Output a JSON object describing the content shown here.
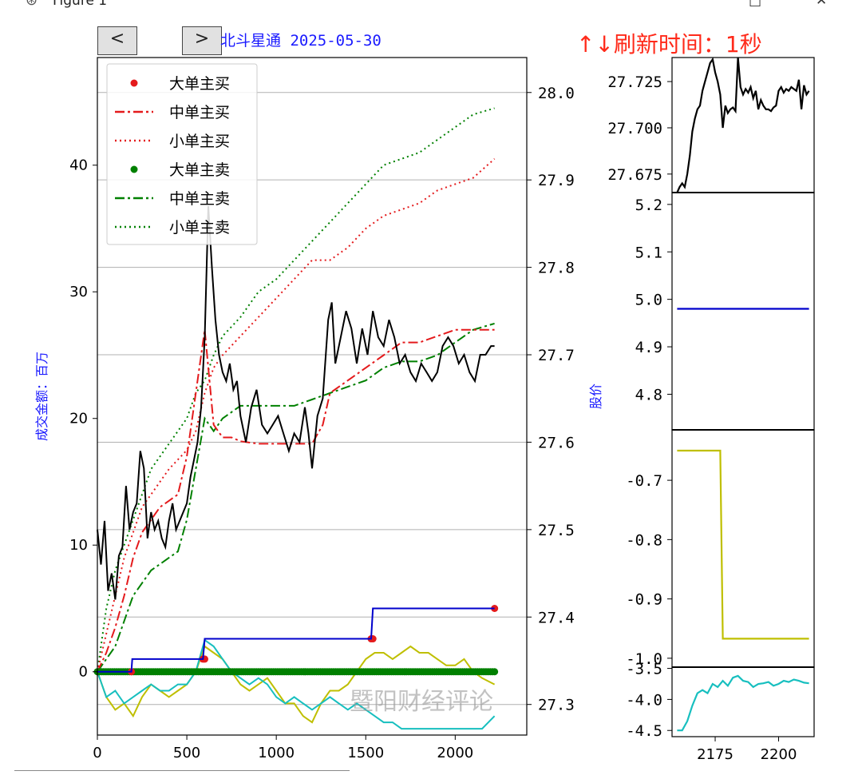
{
  "window": {
    "title": "Figure 1",
    "icon": "matplotlib-logo-icon"
  },
  "nav": {
    "prev_label": "<",
    "next_label": ">"
  },
  "subtitle": "北斗星通 2025-05-30",
  "refresh_text": "↑↓刷新时间：1秒",
  "watermark": "暨阳财经评论",
  "colors": {
    "price": "#000000",
    "big": "#e41a1c",
    "mid": "#e41a1c",
    "small": "#e41a1c",
    "sell": "#008000",
    "blue": "#0000cc",
    "olive": "#bfbf00",
    "cyan": "#17bfbf",
    "title_blue": "#1a1aff",
    "refresh_red": "#ff2a1a"
  },
  "chart_data": [
    {
      "type": "line",
      "ylabel": "成交金额：百万",
      "y2label": "股价",
      "xlim": [
        0,
        2400
      ],
      "ylim": [
        -5,
        48.5
      ],
      "y2lim": [
        27.265,
        28.04
      ],
      "xticks": [
        0,
        500,
        1000,
        1500,
        2000
      ],
      "yticks": [
        0,
        10,
        20,
        30,
        40
      ],
      "y2ticks": [
        27.3,
        27.4,
        27.5,
        27.6,
        27.7,
        27.8,
        27.9,
        28.0
      ],
      "y2grid": true,
      "legend_position": "upper-left",
      "legend": [
        "大单主买",
        "中单主买",
        "小单主买",
        "大单主卖",
        "中单主卖",
        "小单主卖"
      ],
      "series": [
        {
          "name": "大单主买",
          "style": "dots",
          "x": [
            0,
            190,
            195,
            590,
            600,
            1530,
            1540,
            2220
          ],
          "values": [
            0,
            0,
            1.0,
            1.0,
            2.6,
            2.6,
            5.0,
            5.0
          ]
        },
        {
          "name": "中单主买",
          "style": "dashdot",
          "x": [
            0,
            50,
            100,
            150,
            200,
            250,
            300,
            350,
            400,
            450,
            500,
            550,
            600,
            650,
            700,
            750,
            800,
            900,
            1000,
            1100,
            1200,
            1260,
            1300,
            1400,
            1500,
            1600,
            1700,
            1800,
            1900,
            2000,
            2100,
            2220
          ],
          "values": [
            0,
            1.5,
            3.5,
            6,
            9,
            11,
            12,
            13,
            13.5,
            14,
            17,
            22,
            27,
            19.5,
            18.5,
            18.5,
            18.2,
            18,
            18,
            18,
            18,
            19.5,
            22,
            23,
            24,
            25,
            26,
            26,
            26.5,
            27,
            27,
            27
          ]
        },
        {
          "name": "小单主买",
          "style": "dotted",
          "x": [
            0,
            50,
            100,
            150,
            200,
            250,
            300,
            400,
            500,
            550,
            600,
            650,
            700,
            800,
            900,
            1000,
            1100,
            1200,
            1300,
            1400,
            1500,
            1600,
            1700,
            1800,
            1900,
            2000,
            2100,
            2220
          ],
          "values": [
            0,
            3,
            6,
            9,
            11,
            13,
            14,
            16,
            17.5,
            19,
            22,
            24,
            25,
            26.5,
            28,
            29.5,
            31,
            32.5,
            32.5,
            33.5,
            35,
            36,
            36.5,
            37,
            38,
            38.5,
            39,
            40.5
          ]
        },
        {
          "name": "大单主卖",
          "style": "dots",
          "x": [
            0,
            500,
            1000,
            1500,
            2000,
            2220
          ],
          "values": [
            0,
            0,
            0,
            0,
            0,
            0
          ]
        },
        {
          "name": "中单主卖",
          "style": "dashdot",
          "x": [
            0,
            50,
            100,
            150,
            200,
            250,
            300,
            350,
            400,
            450,
            500,
            550,
            600,
            650,
            700,
            800,
            900,
            1000,
            1100,
            1200,
            1300,
            1400,
            1500,
            1600,
            1700,
            1800,
            1900,
            2000,
            2100,
            2220
          ],
          "values": [
            0,
            1,
            2,
            4,
            6,
            7,
            8,
            8.5,
            9,
            9.5,
            12,
            16,
            20,
            19,
            20,
            21,
            21,
            21,
            21,
            21.5,
            22,
            22.5,
            23,
            24,
            24.5,
            24.5,
            25,
            26,
            27,
            27.5
          ]
        },
        {
          "name": "小单主卖",
          "style": "dotted",
          "x": [
            0,
            50,
            100,
            150,
            200,
            250,
            300,
            400,
            500,
            550,
            600,
            650,
            700,
            800,
            900,
            1000,
            1100,
            1200,
            1300,
            1400,
            1500,
            1600,
            1700,
            1800,
            1900,
            2000,
            2100,
            2220
          ],
          "values": [
            0,
            5,
            8,
            10,
            12,
            14,
            16,
            18,
            20,
            22,
            23,
            25,
            26.5,
            28,
            30,
            31,
            32.5,
            34,
            35.5,
            37,
            38.5,
            40,
            40.5,
            41,
            42,
            43,
            44,
            44.5
          ]
        },
        {
          "name": "股价",
          "axis": "right",
          "style": "line",
          "x": [
            0,
            20,
            40,
            60,
            80,
            100,
            120,
            140,
            160,
            180,
            200,
            220,
            240,
            260,
            280,
            300,
            320,
            340,
            360,
            380,
            400,
            420,
            440,
            460,
            480,
            500,
            520,
            540,
            560,
            580,
            600,
            620,
            640,
            660,
            680,
            700,
            720,
            740,
            760,
            780,
            800,
            830,
            860,
            890,
            920,
            950,
            980,
            1010,
            1040,
            1070,
            1100,
            1130,
            1160,
            1180,
            1200,
            1230,
            1260,
            1290,
            1310,
            1330,
            1360,
            1390,
            1420,
            1450,
            1480,
            1510,
            1540,
            1570,
            1600,
            1630,
            1660,
            1690,
            1720,
            1750,
            1780,
            1810,
            1840,
            1870,
            1900,
            1930,
            1960,
            1990,
            2020,
            2050,
            2080,
            2110,
            2140,
            2170,
            2200,
            2220
          ],
          "values": [
            27.5,
            27.46,
            27.51,
            27.43,
            27.45,
            27.42,
            27.47,
            27.48,
            27.55,
            27.5,
            27.52,
            27.53,
            27.59,
            27.57,
            27.49,
            27.52,
            27.5,
            27.51,
            27.49,
            27.48,
            27.51,
            27.53,
            27.5,
            27.51,
            27.52,
            27.53,
            27.56,
            27.58,
            27.6,
            27.64,
            27.72,
            27.87,
            27.8,
            27.74,
            27.7,
            27.68,
            27.67,
            27.69,
            27.66,
            27.67,
            27.63,
            27.6,
            27.64,
            27.66,
            27.62,
            27.61,
            27.62,
            27.63,
            27.61,
            27.59,
            27.61,
            27.6,
            27.64,
            27.61,
            27.57,
            27.63,
            27.65,
            27.74,
            27.76,
            27.69,
            27.72,
            27.75,
            27.73,
            27.69,
            27.73,
            27.7,
            27.75,
            27.72,
            27.71,
            27.74,
            27.72,
            27.69,
            27.7,
            27.68,
            27.67,
            27.69,
            27.68,
            27.67,
            27.68,
            27.71,
            27.72,
            27.71,
            27.69,
            27.7,
            27.68,
            27.67,
            27.7,
            27.7,
            27.71,
            27.71
          ]
        },
        {
          "name": "olive",
          "style": "line",
          "x": [
            0,
            50,
            100,
            150,
            200,
            250,
            300,
            350,
            400,
            450,
            500,
            550,
            600,
            650,
            700,
            750,
            800,
            850,
            900,
            950,
            1000,
            1050,
            1100,
            1150,
            1200,
            1250,
            1300,
            1350,
            1400,
            1450,
            1500,
            1550,
            1600,
            1650,
            1700,
            1750,
            1800,
            1850,
            1900,
            1950,
            2000,
            2050,
            2100,
            2150,
            2220
          ],
          "values": [
            0,
            -2,
            -3,
            -2.5,
            -3.5,
            -2,
            -1,
            -1.5,
            -2,
            -1.5,
            -1,
            0,
            2,
            1.5,
            1,
            0,
            -1,
            -1.5,
            -1,
            -0.5,
            -1.5,
            -2.5,
            -2.5,
            -3.5,
            -4,
            -2.5,
            -1.5,
            -1.5,
            -1,
            0,
            1,
            1.5,
            1.5,
            1,
            1.5,
            2,
            1.5,
            1.5,
            1,
            0.5,
            0.5,
            1,
            0,
            -0.5,
            -1
          ]
        },
        {
          "name": "cyan",
          "style": "line",
          "x": [
            0,
            50,
            100,
            150,
            200,
            250,
            300,
            350,
            400,
            450,
            500,
            550,
            600,
            650,
            700,
            750,
            800,
            850,
            900,
            950,
            1000,
            1050,
            1100,
            1150,
            1200,
            1250,
            1300,
            1350,
            1400,
            1450,
            1500,
            1550,
            1600,
            1650,
            1700,
            1750,
            1800,
            1850,
            1900,
            1950,
            2000,
            2050,
            2100,
            2150,
            2220
          ],
          "values": [
            0,
            -2,
            -1.5,
            -2.5,
            -2,
            -1.5,
            -1,
            -1.5,
            -1.5,
            -1,
            -1,
            0,
            2.5,
            2,
            1,
            0,
            -0.5,
            -1,
            -0.5,
            -1,
            -2,
            -2.5,
            -2,
            -2.5,
            -3,
            -2.5,
            -2,
            -2.5,
            -3,
            -2.5,
            -3,
            -3.5,
            -4,
            -4,
            -4.5,
            -4.5,
            -4.5,
            -4.5,
            -4.5,
            -4.5,
            -4.5,
            -4.5,
            -4.5,
            -4.5,
            -3.5
          ]
        },
        {
          "name": "blue",
          "style": "line",
          "x": [
            0,
            190,
            195,
            590,
            600,
            1530,
            1540,
            2220
          ],
          "values": [
            0,
            0,
            1,
            1,
            2.6,
            2.6,
            5,
            5
          ]
        }
      ]
    },
    {
      "type": "line",
      "xlim": [
        2158,
        2214
      ],
      "ylim": [
        27.665,
        27.738
      ],
      "yticks": [
        27.675,
        27.7,
        27.725
      ],
      "series": [
        {
          "x": [
            2160,
            2161,
            2162,
            2163,
            2164,
            2165,
            2166,
            2167,
            2168,
            2169,
            2170,
            2171,
            2172,
            2173,
            2174,
            2175,
            2176,
            2177,
            2178,
            2179,
            2180,
            2181,
            2182,
            2183,
            2184,
            2185,
            2186,
            2187,
            2188,
            2189,
            2190,
            2191,
            2192,
            2193,
            2194,
            2195,
            2196,
            2197,
            2198,
            2199,
            2200,
            2201,
            2202,
            2203,
            2204,
            2205,
            2206,
            2207,
            2208,
            2209,
            2210,
            2211,
            2212
          ],
          "values": [
            27.665,
            27.668,
            27.67,
            27.668,
            27.675,
            27.685,
            27.698,
            27.705,
            27.71,
            27.712,
            27.72,
            27.725,
            27.73,
            27.735,
            27.737,
            27.73,
            27.725,
            27.718,
            27.7,
            27.712,
            27.708,
            27.71,
            27.711,
            27.709,
            27.738,
            27.722,
            27.718,
            27.721,
            27.719,
            27.722,
            27.716,
            27.72,
            27.71,
            27.715,
            27.712,
            27.71,
            27.71,
            27.709,
            27.711,
            27.712,
            27.72,
            27.722,
            27.719,
            27.721,
            27.72,
            27.722,
            27.721,
            27.72,
            27.726,
            27.71,
            27.723,
            27.718,
            27.72
          ]
        }
      ]
    },
    {
      "type": "line",
      "xlim": [
        2158,
        2214
      ],
      "ylim": [
        4.725,
        5.225
      ],
      "yticks": [
        4.8,
        4.9,
        5.0,
        5.1,
        5.2
      ],
      "series": [
        {
          "x": [
            2160,
            2212
          ],
          "values": [
            4.98,
            4.98
          ]
        }
      ]
    },
    {
      "type": "line",
      "xlim": [
        2158,
        2214
      ],
      "ylim": [
        -1.015,
        -0.615
      ],
      "yticks": [
        -1.0,
        -0.9,
        -0.8,
        -0.7
      ],
      "series": [
        {
          "x": [
            2160,
            2177,
            2178,
            2212
          ],
          "values": [
            -0.65,
            -0.65,
            -0.967,
            -0.967
          ]
        }
      ]
    },
    {
      "type": "line",
      "xlim": [
        2158,
        2214
      ],
      "ylim": [
        -4.6,
        -3.48
      ],
      "xticks": [
        2175,
        2200
      ],
      "yticks": [
        -4.5,
        -4.0,
        -3.5
      ],
      "series": [
        {
          "x": [
            2160,
            2162,
            2164,
            2166,
            2168,
            2170,
            2172,
            2174,
            2176,
            2178,
            2180,
            2182,
            2184,
            2186,
            2188,
            2190,
            2192,
            2194,
            2196,
            2198,
            2200,
            2202,
            2204,
            2206,
            2208,
            2210,
            2212
          ],
          "values": [
            -4.5,
            -4.5,
            -4.35,
            -4.1,
            -3.9,
            -3.85,
            -3.9,
            -3.75,
            -3.8,
            -3.7,
            -3.78,
            -3.65,
            -3.62,
            -3.7,
            -3.72,
            -3.8,
            -3.75,
            -3.74,
            -3.72,
            -3.78,
            -3.75,
            -3.7,
            -3.72,
            -3.68,
            -3.7,
            -3.73,
            -3.74
          ]
        }
      ]
    }
  ]
}
